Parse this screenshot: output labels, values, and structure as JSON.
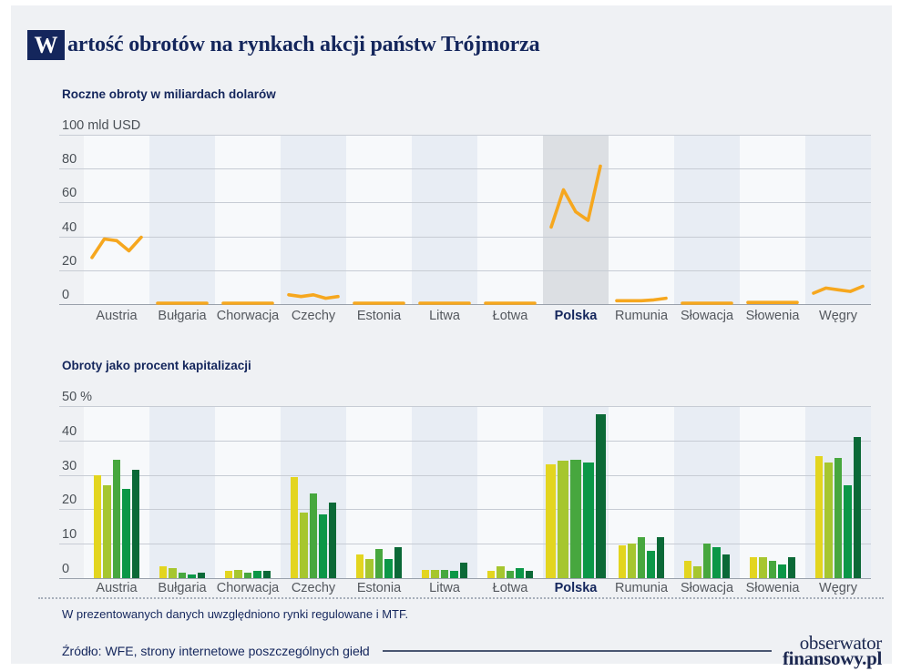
{
  "title": {
    "initial": "W",
    "rest": "artość obrotów na rynkach akcji państw Trójmorza"
  },
  "highlight_country": "Polska",
  "colors": {
    "brand_navy": "#14265c",
    "line_orange": "#f6a71e",
    "bar_greens": [
      "#e3d51f",
      "#a6c62f",
      "#47a73e",
      "#0b9747",
      "#0b6937"
    ]
  },
  "chart_data": [
    {
      "type": "line",
      "title": "Roczne obroty w miliardach dolarów",
      "unit_label": "mld USD",
      "ylim": [
        0,
        100
      ],
      "y_ticks": [
        0,
        20,
        40,
        60,
        80,
        100
      ],
      "line_color": "#f6a71e",
      "grid": true,
      "categories": [
        "Austria",
        "Bułgaria",
        "Chorwacja",
        "Czechy",
        "Estonia",
        "Litwa",
        "Łotwa",
        "Polska",
        "Rumunia",
        "Słowacja",
        "Słowenia",
        "Węgry"
      ],
      "series": [
        {
          "name": "Austria",
          "values": [
            28,
            39,
            38,
            32,
            40
          ]
        },
        {
          "name": "Bułgaria",
          "values": [
            0.5,
            0.5,
            0.5,
            0.5,
            0.5
          ]
        },
        {
          "name": "Chorwacja",
          "values": [
            1,
            1,
            1,
            1,
            1
          ]
        },
        {
          "name": "Czechy",
          "values": [
            6,
            5,
            6,
            4,
            5
          ]
        },
        {
          "name": "Estonia",
          "values": [
            0.8,
            0.8,
            0.8,
            0.8,
            0.8
          ]
        },
        {
          "name": "Litwa",
          "values": [
            0.8,
            0.8,
            0.8,
            0.8,
            0.8
          ]
        },
        {
          "name": "Łotwa",
          "values": [
            0.5,
            0.5,
            0.5,
            0.5,
            0.5
          ]
        },
        {
          "name": "Polska",
          "values": [
            46,
            68,
            55,
            50,
            82
          ]
        },
        {
          "name": "Rumunia",
          "values": [
            2.5,
            2.5,
            2.5,
            3,
            4
          ]
        },
        {
          "name": "Słowacja",
          "values": [
            1,
            1,
            1,
            1,
            1
          ]
        },
        {
          "name": "Słowenia",
          "values": [
            1.5,
            1.5,
            1.5,
            1.5,
            1.5
          ]
        },
        {
          "name": "Węgry",
          "values": [
            7,
            10,
            9,
            8,
            11
          ]
        }
      ]
    },
    {
      "type": "bar",
      "title": "Obroty jako procent kapitalizacji",
      "unit_label": "%",
      "ylim": [
        0,
        50
      ],
      "y_ticks": [
        0,
        10,
        20,
        30,
        40,
        50
      ],
      "bar_colors": [
        "#e3d51f",
        "#a6c62f",
        "#47a73e",
        "#0b9747",
        "#0b6937"
      ],
      "grid": true,
      "categories": [
        "Austria",
        "Bułgaria",
        "Chorwacja",
        "Czechy",
        "Estonia",
        "Litwa",
        "Łotwa",
        "Polska",
        "Rumunia",
        "Słowacja",
        "Słowenia",
        "Węgry"
      ],
      "series": [
        {
          "name": "Austria",
          "values": [
            30,
            27,
            34.5,
            26,
            31.5
          ]
        },
        {
          "name": "Bułgaria",
          "values": [
            3.5,
            3,
            1.5,
            1,
            1.5
          ]
        },
        {
          "name": "Chorwacja",
          "values": [
            2,
            2.5,
            1.5,
            2,
            2
          ]
        },
        {
          "name": "Czechy",
          "values": [
            29.5,
            19,
            24.5,
            18.5,
            22
          ]
        },
        {
          "name": "Estonia",
          "values": [
            7,
            5.5,
            8.5,
            5.5,
            9
          ]
        },
        {
          "name": "Litwa",
          "values": [
            2.5,
            2.5,
            2.5,
            2,
            4.5
          ]
        },
        {
          "name": "Łotwa",
          "values": [
            2,
            3.5,
            2,
            3,
            2
          ]
        },
        {
          "name": "Polska",
          "values": [
            33,
            34,
            34.5,
            33.5,
            47.5
          ]
        },
        {
          "name": "Rumunia",
          "values": [
            9.5,
            10,
            12,
            8,
            12
          ]
        },
        {
          "name": "Słowacja",
          "values": [
            5,
            3.5,
            10,
            9,
            7
          ]
        },
        {
          "name": "Słowenia",
          "values": [
            6,
            6,
            5,
            4,
            6
          ]
        },
        {
          "name": "Węgry",
          "values": [
            35.5,
            33.5,
            35,
            27,
            41
          ]
        }
      ]
    }
  ],
  "footnote": "W prezentowanych danych uwzględniono rynki regulowane i MTF.",
  "source": "Źródło: WFE, strony internetowe poszczególnych giełd",
  "logo": {
    "line1": "obserwator",
    "line2": "finansowy.pl"
  }
}
